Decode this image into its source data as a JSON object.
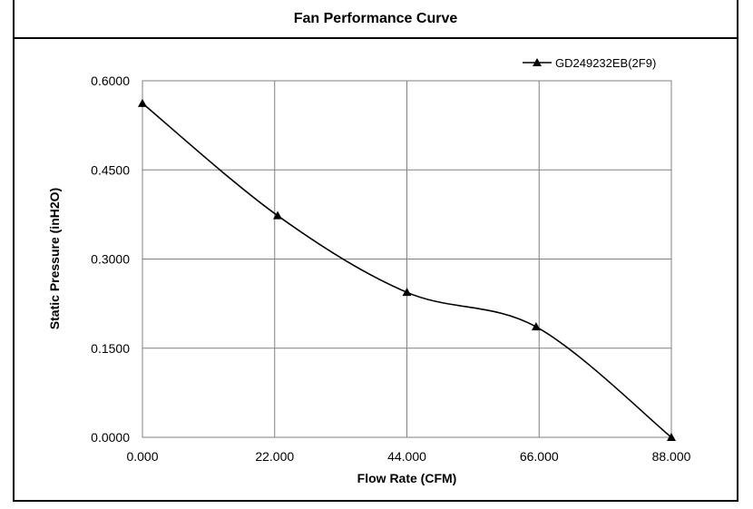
{
  "chart_data": {
    "type": "line",
    "title": "Fan Performance Curve",
    "xlabel": "Flow Rate (CFM)",
    "ylabel": "Static Pressure (inH2O)",
    "xlim": [
      0,
      88
    ],
    "ylim": [
      0,
      0.6
    ],
    "x_ticks": [
      "0.000",
      "22.000",
      "44.000",
      "66.000",
      "88.000"
    ],
    "y_ticks": [
      "0.0000",
      "0.1500",
      "0.3000",
      "0.4500",
      "0.6000"
    ],
    "grid": true,
    "legend_position": "top-right",
    "series": [
      {
        "name": "GD249232EB(2F9)",
        "marker": "triangle",
        "color": "#000000",
        "x": [
          0,
          22.5,
          44,
          65.5,
          88
        ],
        "y": [
          0.562,
          0.373,
          0.244,
          0.186,
          0.0
        ]
      }
    ]
  }
}
